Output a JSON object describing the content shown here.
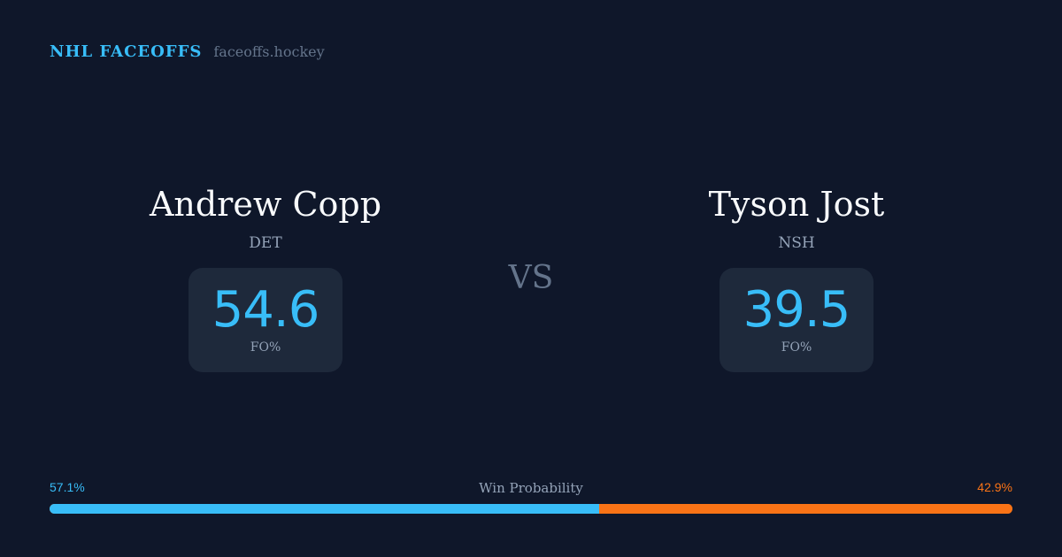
{
  "header": {
    "title": "NHL FACEOFFS",
    "domain": "faceoffs.hockey"
  },
  "players": [
    {
      "name": "Andrew Copp",
      "team": "DET",
      "fo_pct": "54.6",
      "fo_label": "FO%"
    },
    {
      "name": "Tyson Jost",
      "team": "NSH",
      "fo_pct": "39.5",
      "fo_label": "FO%"
    }
  ],
  "vs_label": "VS",
  "win_probability": {
    "title": "Win Probability",
    "left_label": "57.1%",
    "right_label": "42.9%",
    "left_value": 57.1,
    "right_value": 42.9,
    "left_color": "#38bdf8",
    "right_color": "#f97316"
  }
}
